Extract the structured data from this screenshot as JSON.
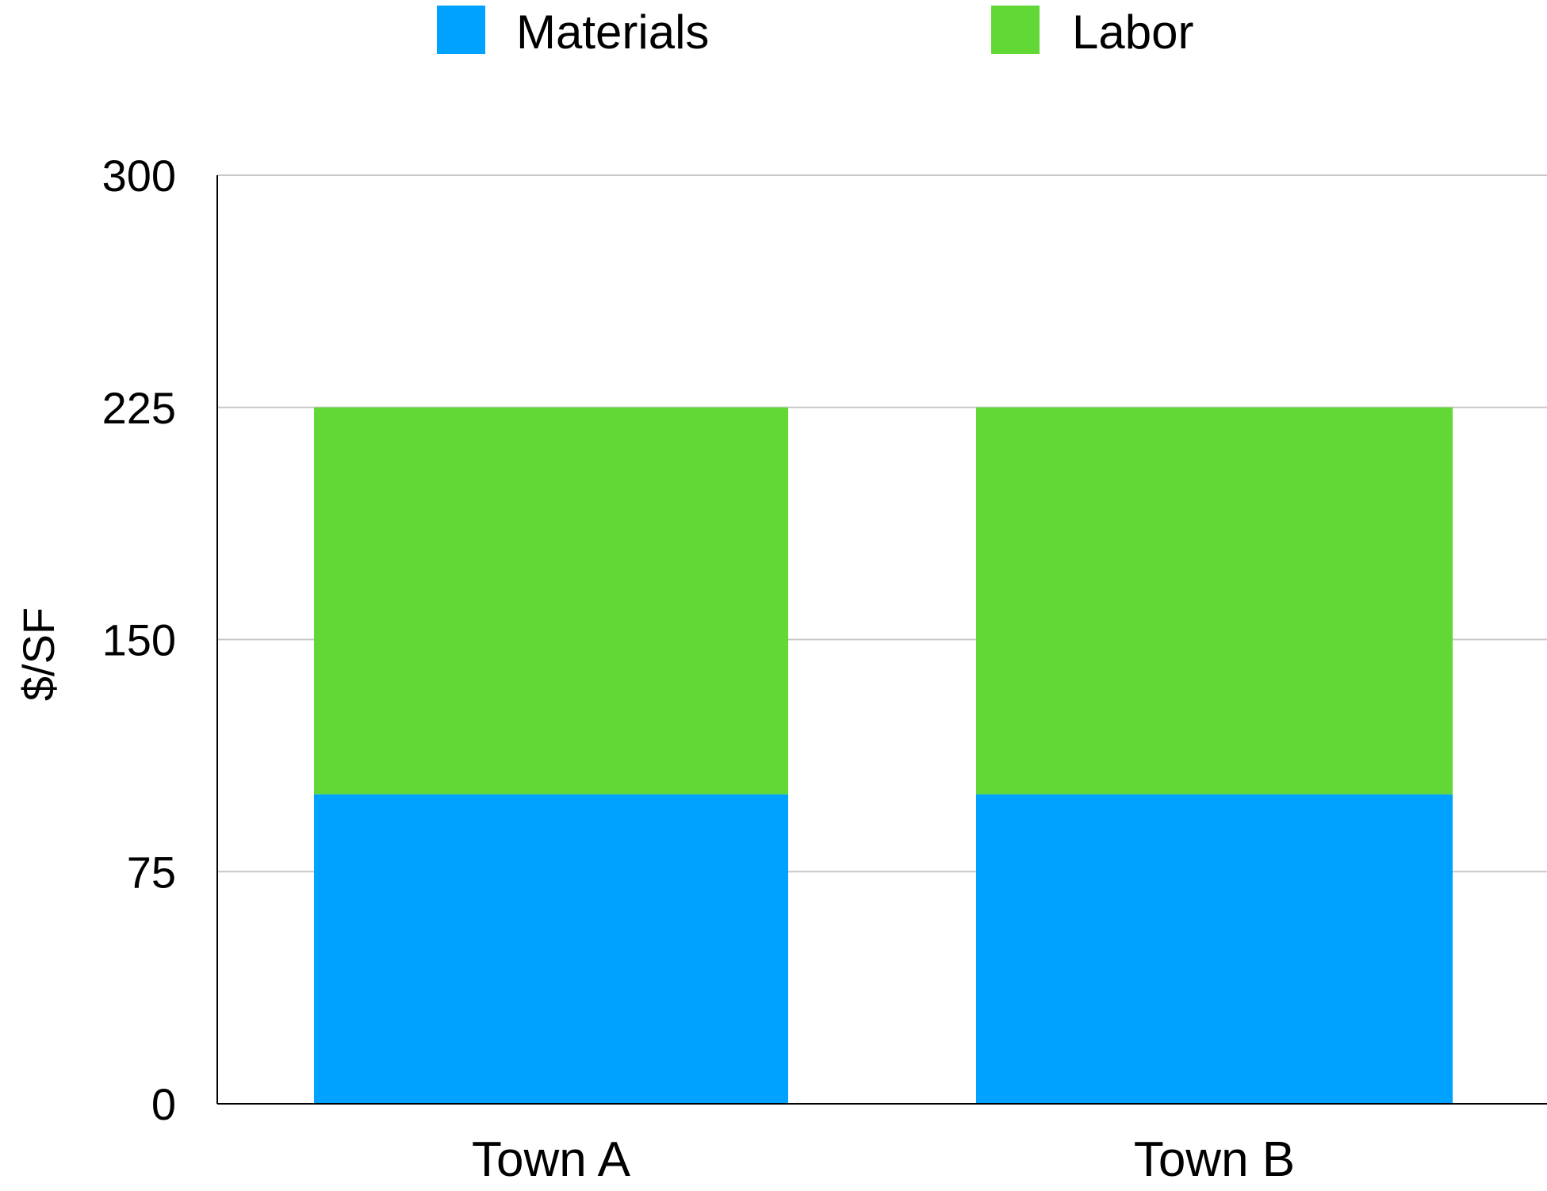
{
  "chart_data": {
    "type": "bar",
    "stacked": true,
    "categories": [
      "Town A",
      "Town B"
    ],
    "series": [
      {
        "name": "Materials",
        "color": "#00A2FF",
        "values": [
          100,
          100
        ]
      },
      {
        "name": "Labor",
        "color": "#61D836",
        "values": [
          125,
          125
        ]
      }
    ],
    "xlabel": "",
    "ylabel": "$/SF",
    "ylim": [
      0,
      300
    ],
    "yticks": [
      0,
      75,
      150,
      225,
      300
    ],
    "grid": true,
    "legend_position": "top"
  }
}
